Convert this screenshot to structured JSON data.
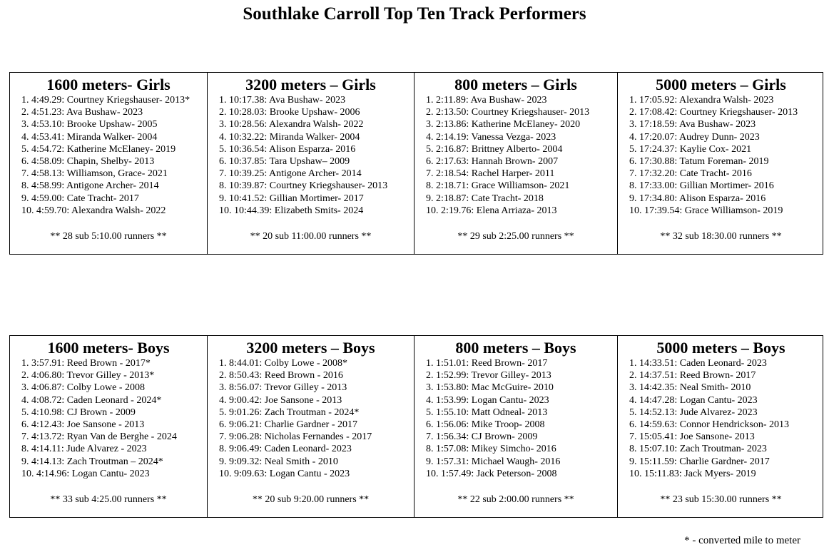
{
  "title": "Southlake Carroll Top Ten Track Performers",
  "girls": [
    {
      "event": "1600 meters- Girls",
      "entries": [
        "1. 4:49.29: Courtney Kriegshauser- 2013*",
        "2. 4:51.23: Ava Bushaw- 2023",
        "3. 4:53.10: Brooke Upshaw- 2005",
        "4. 4:53.41: Miranda Walker- 2004",
        "5. 4:54.72: Katherine McElaney- 2019",
        "6. 4:58.09: Chapin, Shelby- 2013",
        "7. 4:58.13: Williamson, Grace- 2021",
        "8. 4:58.99: Antigone Archer- 2014",
        "9. 4:59.00: Cate Tracht- 2017",
        "10. 4:59.70: Alexandra Walsh- 2022"
      ],
      "summary": "** 28 sub 5:10.00 runners **"
    },
    {
      "event": "3200 meters – Girls",
      "entries": [
        "1. 10:17.38: Ava Bushaw- 2023",
        "2. 10:28.03: Brooke Upshaw- 2006",
        "3. 10:28.56: Alexandra Walsh- 2022",
        "4. 10:32.22: Miranda Walker- 2004",
        "5. 10:36.54: Alison Esparza- 2016",
        "6. 10:37.85: Tara Upshaw– 2009",
        "7. 10:39.25: Antigone Archer- 2014",
        "8. 10:39.87: Courtney Kriegshauser- 2013",
        "9. 10:41.52: Gillian Mortimer- 2017",
        "10. 10:44.39: Elizabeth Smits- 2024"
      ],
      "summary": "** 20 sub 11:00.00 runners **"
    },
    {
      "event": "800 meters – Girls",
      "entries": [
        "1. 2:11.89: Ava Bushaw- 2023",
        "2. 2:13.50: Courtney Kriegshauser- 2013",
        "3. 2:13.86: Katherine McElaney- 2020",
        "4. 2:14.19: Vanessa Vezga- 2023",
        "5. 2:16.87: Brittney Alberto- 2004",
        "6. 2:17.63: Hannah Brown- 2007",
        "7. 2:18.54: Rachel Harper- 2011",
        "8. 2:18.71: Grace Williamson- 2021",
        "9. 2:18.87: Cate Tracht- 2018",
        "10. 2:19.76: Elena Arriaza- 2013"
      ],
      "summary": "** 29 sub 2:25.00 runners **"
    },
    {
      "event": "5000 meters – Girls",
      "entries": [
        "1. 17:05.92: Alexandra Walsh- 2023",
        "2. 17:08.42: Courtney Kriegshauser- 2013",
        "3. 17:18.59: Ava Bushaw- 2023",
        "4. 17:20.07: Audrey Dunn- 2023",
        "5. 17:24.37: Kaylie Cox- 2021",
        "6. 17:30.88: Tatum Foreman- 2019",
        "7. 17:32.20: Cate Tracht- 2016",
        "8. 17:33.00: Gillian Mortimer- 2016",
        "9. 17:34.80: Alison Esparza- 2016",
        "10. 17:39.54: Grace Williamson- 2019"
      ],
      "summary": "** 32 sub 18:30.00 runners **"
    }
  ],
  "boys": [
    {
      "event": "1600 meters- Boys",
      "entries": [
        "1. 3:57.91: Reed Brown - 2017*",
        "2. 4:06.80: Trevor Gilley - 2013*",
        "3. 4:06.87: Colby Lowe - 2008",
        "4. 4:08.72: Caden Leonard - 2024*",
        "5. 4:10.98: CJ Brown - 2009",
        "6. 4:12.43: Joe Sansone - 2013",
        "7. 4:13.72: Ryan Van de Berghe - 2024",
        "8. 4:14.11: Jude Alvarez - 2023",
        "9. 4:14.13: Zach Troutman – 2024*",
        "10. 4:14.96: Logan Cantu- 2023"
      ],
      "summary": "** 33 sub 4:25.00 runners **"
    },
    {
      "event": "3200 meters – Boys",
      "entries": [
        "1. 8:44.01: Colby Lowe - 2008*",
        "2. 8:50.43: Reed Brown - 2016",
        "3. 8:56.07: Trevor Gilley - 2013",
        "4. 9:00.42: Joe Sansone - 2013",
        "5. 9:01.26: Zach Troutman - 2024*",
        "6. 9:06.21: Charlie Gardner - 2017",
        "7. 9:06.28: Nicholas Fernandes - 2017",
        "8. 9:06.49: Caden Leonard- 2023",
        "9. 9:09.32: Neal Smith - 2010",
        "10. 9:09.63: Logan Cantu - 2023"
      ],
      "summary": "** 20 sub 9:20.00 runners **"
    },
    {
      "event": "800 meters – Boys",
      "entries": [
        "1. 1:51.01: Reed Brown- 2017",
        "2. 1:52.99: Trevor Gilley- 2013",
        "3. 1:53.80: Mac McGuire- 2010",
        "4. 1:53.99: Logan Cantu- 2023",
        "5. 1:55.10: Matt Odneal- 2013",
        "6. 1:56.06: Mike Troop- 2008",
        "7. 1:56.34: CJ Brown- 2009",
        "8. 1:57.08: Mikey Simcho- 2016",
        "9. 1:57.31: Michael Waugh- 2016",
        "10. 1:57.49: Jack Peterson- 2008"
      ],
      "summary": "** 22 sub 2:00.00 runners **"
    },
    {
      "event": "5000 meters – Boys",
      "entries": [
        "1. 14:33.51: Caden Leonard- 2023",
        "2. 14:37.51: Reed Brown- 2017",
        "3. 14:42.35: Neal Smith- 2010",
        "4. 14:47.28: Logan Cantu- 2023",
        "5. 14:52.13: Jude Alvarez- 2023",
        "6. 14:59.63: Connor Hendrickson- 2013",
        "7. 15:05.41: Joe Sansone- 2013",
        "8. 15:07.10: Zach Troutman- 2023",
        "9. 15:11.59: Charlie Gardner- 2017",
        "10. 15:11.83: Jack Myers- 2019"
      ],
      "summary": "** 23 sub 15:30.00 runners **"
    }
  ],
  "footnote": "* - converted mile to meter"
}
